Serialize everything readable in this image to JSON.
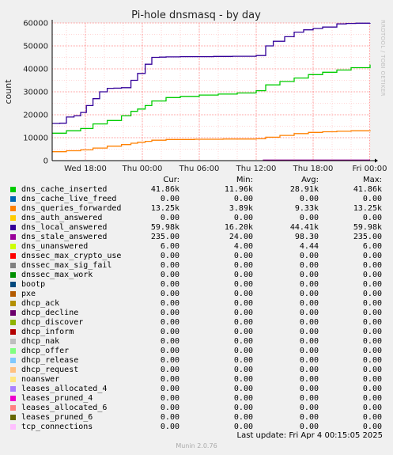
{
  "chart_data": {
    "type": "line",
    "title": "Pi-hole dnsmasq - by day",
    "ylabel": "count",
    "ylim": [
      0,
      60000
    ],
    "yticks": [
      0,
      10000,
      20000,
      30000,
      40000,
      50000,
      60000
    ],
    "xlim_hours": [
      0,
      31.5
    ],
    "xticks": [
      {
        "label": "Wed 18:00",
        "hour": 3.5
      },
      {
        "label": "Thu 00:00",
        "hour": 9.5
      },
      {
        "label": "Thu 06:00",
        "hour": 15.5
      },
      {
        "label": "Thu 12:00",
        "hour": 21.5
      },
      {
        "label": "Thu 18:00",
        "hour": 27.5
      },
      {
        "label": "Fri 00:00",
        "hour": 33.5
      }
    ],
    "grid": true,
    "series": [
      {
        "name": "dns_local_answered",
        "color": "#330099",
        "x": [
          0,
          0.8,
          1.5,
          2.3,
          3.0,
          3.6,
          4.3,
          5.0,
          5.8,
          6.5,
          7.3,
          8.3,
          9.0,
          9.8,
          10.5,
          11.3,
          12.0,
          13.5,
          15.0,
          17.0,
          19.0,
          21.5,
          22.5,
          23.3,
          24.5,
          25.5,
          26.5,
          27.5,
          28.5,
          30.0,
          31.0,
          32.0,
          33.5
        ],
        "y": [
          16200,
          16300,
          19000,
          19500,
          21000,
          24000,
          27000,
          30000,
          31500,
          31600,
          31800,
          35000,
          38000,
          42000,
          45000,
          45100,
          45200,
          45300,
          45300,
          45400,
          45500,
          45800,
          50000,
          52000,
          54000,
          56000,
          57000,
          57600,
          58200,
          59600,
          59800,
          59900,
          59980
        ]
      },
      {
        "name": "dns_cache_inserted",
        "color": "#00cc00",
        "x": [
          0,
          1.5,
          3.0,
          4.3,
          5.8,
          7.3,
          8.3,
          9.0,
          9.8,
          10.5,
          12.0,
          13.5,
          15.5,
          17.5,
          19.5,
          21.5,
          22.5,
          24.0,
          25.5,
          27.0,
          28.5,
          30.0,
          31.5,
          33.5
        ],
        "y": [
          11960,
          13000,
          14000,
          16000,
          17500,
          19500,
          21500,
          22500,
          24000,
          26000,
          27500,
          28000,
          28600,
          29000,
          29500,
          30500,
          33000,
          34500,
          36000,
          37500,
          38500,
          39500,
          40500,
          41860
        ]
      },
      {
        "name": "dns_queries_forwarded",
        "color": "#ff8000",
        "x": [
          0,
          1.5,
          3.0,
          4.3,
          5.8,
          7.3,
          8.3,
          9.0,
          9.8,
          10.5,
          12.0,
          15.0,
          18.0,
          21.5,
          22.5,
          24.0,
          25.5,
          27.0,
          28.5,
          30.0,
          31.5,
          33.5
        ],
        "y": [
          3890,
          4300,
          4700,
          5500,
          6300,
          7000,
          7600,
          8000,
          8400,
          8900,
          9200,
          9300,
          9400,
          9500,
          10200,
          11000,
          11800,
          12300,
          12600,
          12800,
          13000,
          13250
        ]
      },
      {
        "name": "dns_stale_answered",
        "color": "#990099",
        "x": [
          22.2,
          33.5
        ],
        "y": [
          235,
          235
        ]
      }
    ],
    "legend": {
      "headers": [
        "Cur:",
        "Min:",
        "Avg:",
        "Max:"
      ],
      "rows": [
        {
          "name": "dns_cache_inserted",
          "color": "#00cc00",
          "cur": "41.86k",
          "min": "11.96k",
          "avg": "28.91k",
          "max": "41.86k"
        },
        {
          "name": "dns_cache_live_freed",
          "color": "#0066b3",
          "cur": "0.00",
          "min": "0.00",
          "avg": "0.00",
          "max": "0.00"
        },
        {
          "name": "dns_queries_forwarded",
          "color": "#ff8000",
          "cur": "13.25k",
          "min": "3.89k",
          "avg": "9.33k",
          "max": "13.25k"
        },
        {
          "name": "dns_auth_answered",
          "color": "#ffcc00",
          "cur": "0.00",
          "min": "0.00",
          "avg": "0.00",
          "max": "0.00"
        },
        {
          "name": "dns_local_answered",
          "color": "#330099",
          "cur": "59.98k",
          "min": "16.20k",
          "avg": "44.41k",
          "max": "59.98k"
        },
        {
          "name": "dns_stale_answered",
          "color": "#990099",
          "cur": "235.00",
          "min": "24.00",
          "avg": "98.30",
          "max": "235.00"
        },
        {
          "name": "dns_unanswered",
          "color": "#ccff00",
          "cur": "6.00",
          "min": "4.00",
          "avg": "4.44",
          "max": "6.00"
        },
        {
          "name": "dnssec_max_crypto_use",
          "color": "#ff0000",
          "cur": "0.00",
          "min": "0.00",
          "avg": "0.00",
          "max": "0.00"
        },
        {
          "name": "dnssec_max_sig_fail",
          "color": "#808080",
          "cur": "0.00",
          "min": "0.00",
          "avg": "0.00",
          "max": "0.00"
        },
        {
          "name": "dnssec_max_work",
          "color": "#008f00",
          "cur": "0.00",
          "min": "0.00",
          "avg": "0.00",
          "max": "0.00"
        },
        {
          "name": "bootp",
          "color": "#00487d",
          "cur": "0.00",
          "min": "0.00",
          "avg": "0.00",
          "max": "0.00"
        },
        {
          "name": "pxe",
          "color": "#b35a00",
          "cur": "0.00",
          "min": "0.00",
          "avg": "0.00",
          "max": "0.00"
        },
        {
          "name": "dhcp_ack",
          "color": "#b38f00",
          "cur": "0.00",
          "min": "0.00",
          "avg": "0.00",
          "max": "0.00"
        },
        {
          "name": "dhcp_decline",
          "color": "#6b006b",
          "cur": "0.00",
          "min": "0.00",
          "avg": "0.00",
          "max": "0.00"
        },
        {
          "name": "dhcp_discover",
          "color": "#8fb300",
          "cur": "0.00",
          "min": "0.00",
          "avg": "0.00",
          "max": "0.00"
        },
        {
          "name": "dhcp_inform",
          "color": "#b30000",
          "cur": "0.00",
          "min": "0.00",
          "avg": "0.00",
          "max": "0.00"
        },
        {
          "name": "dhcp_nak",
          "color": "#bebebe",
          "cur": "0.00",
          "min": "0.00",
          "avg": "0.00",
          "max": "0.00"
        },
        {
          "name": "dhcp_offer",
          "color": "#80ff80",
          "cur": "0.00",
          "min": "0.00",
          "avg": "0.00",
          "max": "0.00"
        },
        {
          "name": "dhcp_release",
          "color": "#80c9ff",
          "cur": "0.00",
          "min": "0.00",
          "avg": "0.00",
          "max": "0.00"
        },
        {
          "name": "dhcp_request",
          "color": "#ffc080",
          "cur": "0.00",
          "min": "0.00",
          "avg": "0.00",
          "max": "0.00"
        },
        {
          "name": "noanswer",
          "color": "#ffe680",
          "cur": "0.00",
          "min": "0.00",
          "avg": "0.00",
          "max": "0.00"
        },
        {
          "name": "leases_allocated_4",
          "color": "#aa80ff",
          "cur": "0.00",
          "min": "0.00",
          "avg": "0.00",
          "max": "0.00"
        },
        {
          "name": "leases_pruned_4",
          "color": "#ee00cc",
          "cur": "0.00",
          "min": "0.00",
          "avg": "0.00",
          "max": "0.00"
        },
        {
          "name": "leases_allocated_6",
          "color": "#ff8080",
          "cur": "0.00",
          "min": "0.00",
          "avg": "0.00",
          "max": "0.00"
        },
        {
          "name": "leases_pruned_6",
          "color": "#666600",
          "cur": "0.00",
          "min": "0.00",
          "avg": "0.00",
          "max": "0.00"
        },
        {
          "name": "tcp_connections",
          "color": "#ffbfff",
          "cur": "0.00",
          "min": "0.00",
          "avg": "0.00",
          "max": "0.00"
        }
      ]
    }
  },
  "footer": {
    "last_update": "Last update: Fri Apr  4 00:15:05 2025",
    "munin": "Munin 2.0.76",
    "rrdtool": "RRDTOOL / TOBI OETIKER"
  }
}
